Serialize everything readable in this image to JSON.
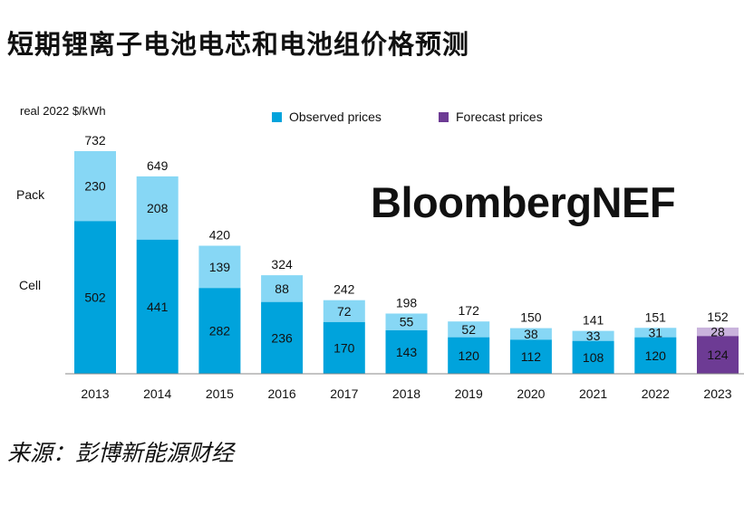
{
  "header": {
    "title": "短期锂离子电池电芯和电池组价格预测"
  },
  "footer": {
    "source": "来源：彭博新能源财经"
  },
  "watermark": {
    "text": "BloombergNEF"
  },
  "colors": {
    "observed_cell": "#00a3dc",
    "observed_pack": "#87d7f5",
    "forecast_cell": "#6d3b94",
    "forecast_pack": "#c9b3dc",
    "axis": "#888888",
    "text": "#111111"
  },
  "chart_data": {
    "type": "bar",
    "stacked": true,
    "unit_label": "real 2022 $/kWh",
    "categories": [
      "2013",
      "2014",
      "2015",
      "2016",
      "2017",
      "2018",
      "2019",
      "2020",
      "2021",
      "2022",
      "2023"
    ],
    "series": [
      {
        "name": "Cell",
        "values": [
          502,
          441,
          282,
          236,
          170,
          143,
          120,
          112,
          108,
          120,
          124
        ]
      },
      {
        "name": "Pack",
        "values": [
          230,
          208,
          139,
          88,
          72,
          55,
          52,
          38,
          33,
          31,
          28
        ]
      }
    ],
    "totals": [
      732,
      649,
      420,
      324,
      242,
      198,
      172,
      150,
      141,
      151,
      152
    ],
    "forecast_categories": [
      "2023"
    ],
    "row_labels": {
      "pack": "Pack",
      "cell": "Cell"
    },
    "legend": [
      {
        "label": "Observed prices",
        "color": "#00a3dc"
      },
      {
        "label": "Forecast prices",
        "color": "#6d3b94"
      }
    ],
    "legend_position": "top-right",
    "ylim": [
      0,
      750
    ],
    "grid": false
  }
}
